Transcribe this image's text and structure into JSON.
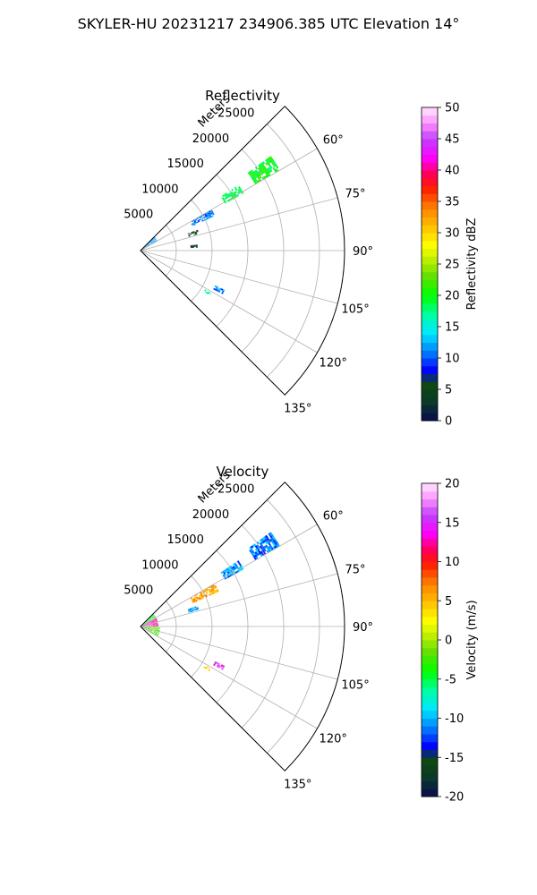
{
  "figure": {
    "suptitle": "SKYLER-HU  20231217  234906.385 UTC Elevation 14°"
  },
  "chart_data": [
    {
      "type": "heatmap",
      "subtype": "polar-sector-ppi",
      "title": "Reflectivity",
      "r_axis_label": "Meters",
      "r_ticks": [
        "5000",
        "10000",
        "15000",
        "20000",
        "25000"
      ],
      "r_tick_values": [
        5000,
        10000,
        15000,
        20000,
        25000
      ],
      "r_max": 28500,
      "theta_range_deg": [
        45,
        135
      ],
      "theta_ticks": [
        "60°",
        "75°",
        "90°",
        "105°",
        "120°",
        "135°"
      ],
      "theta_tick_values": [
        60,
        75,
        90,
        105,
        120,
        135
      ],
      "grid": true,
      "colorbar": {
        "label": "Reflectivity dBZ",
        "min": 0,
        "max": 50,
        "ticks": [
          "0",
          "5",
          "10",
          "15",
          "20",
          "25",
          "30",
          "35",
          "40",
          "45",
          "50"
        ]
      },
      "echo_regions": [
        {
          "az": [
            45,
            60
          ],
          "range": [
            0,
            2600
          ],
          "value": 12
        },
        {
          "az": [
            60,
            65
          ],
          "range": [
            8000,
            11500
          ],
          "value": 11
        },
        {
          "az": [
            56,
            61
          ],
          "range": [
            13500,
            16500
          ],
          "value": 18
        },
        {
          "az": [
            54,
            60
          ],
          "range": [
            18500,
            22500
          ],
          "value": 20
        },
        {
          "az": [
            70,
            74
          ],
          "range": [
            7000,
            8500
          ],
          "value": 4
        },
        {
          "az": [
            84,
            87
          ],
          "range": [
            7000,
            8000
          ],
          "value": 3
        },
        {
          "az": [
            115,
            118
          ],
          "range": [
            11500,
            13000
          ],
          "value": 11
        },
        {
          "az": [
            121,
            123
          ],
          "range": [
            10500,
            11500
          ],
          "value": 17
        }
      ]
    },
    {
      "type": "heatmap",
      "subtype": "polar-sector-ppi",
      "title": "Velocity",
      "r_axis_label": "Meters",
      "r_ticks": [
        "5000",
        "10000",
        "15000",
        "20000",
        "25000"
      ],
      "r_tick_values": [
        5000,
        10000,
        15000,
        20000,
        25000
      ],
      "r_max": 28500,
      "theta_range_deg": [
        45,
        135
      ],
      "theta_ticks": [
        "60°",
        "75°",
        "90°",
        "105°",
        "120°",
        "135°"
      ],
      "theta_tick_values": [
        60,
        75,
        90,
        105,
        120,
        135
      ],
      "grid": true,
      "colorbar": {
        "label": "Velocity (m/s)",
        "min": -20,
        "max": 20,
        "ticks": [
          "-20",
          "-15",
          "-10",
          "-5",
          "0",
          "5",
          "10",
          "15",
          "20"
        ]
      },
      "echo_regions": [
        {
          "az": [
            45,
            62
          ],
          "range": [
            0,
            2400
          ],
          "value": -4
        },
        {
          "az": [
            62,
            90
          ],
          "range": [
            0,
            2400
          ],
          "value": 13
        },
        {
          "az": [
            90,
            120
          ],
          "range": [
            0,
            2600
          ],
          "value": -2
        },
        {
          "az": [
            60,
            66
          ],
          "range": [
            8000,
            11800
          ],
          "value": 6
        },
        {
          "az": [
            56,
            61
          ],
          "range": [
            13500,
            16500
          ],
          "value": -11
        },
        {
          "az": [
            54,
            60
          ],
          "range": [
            18500,
            22500
          ],
          "value": -11
        },
        {
          "az": [
            70,
            74
          ],
          "range": [
            7000,
            8500
          ],
          "value": -10
        },
        {
          "az": [
            115,
            118
          ],
          "range": [
            11500,
            13000
          ],
          "value": 15
        },
        {
          "az": [
            121,
            123
          ],
          "range": [
            10500,
            11500
          ],
          "value": 4
        }
      ]
    }
  ]
}
